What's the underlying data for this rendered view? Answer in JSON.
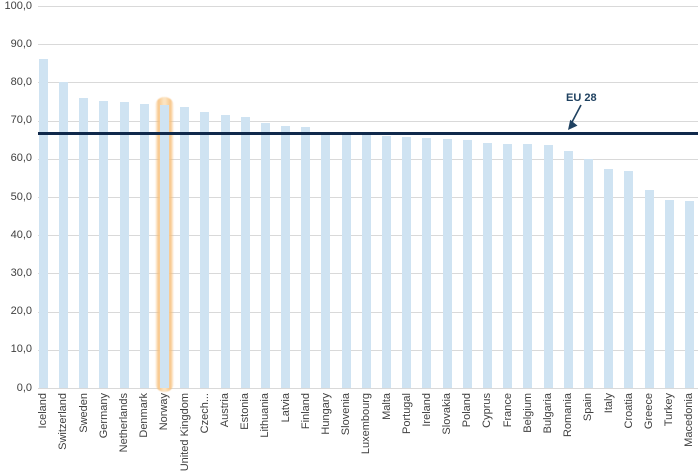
{
  "chart_data": {
    "type": "bar",
    "title": "",
    "xlabel": "",
    "ylabel": "",
    "ylim": [
      0,
      100
    ],
    "ytick_step": 10,
    "grid": true,
    "bar_color": "#cfe3f2",
    "gridline_color": "#d9d9d9",
    "text_color": "#404040",
    "categories": [
      "Iceland",
      "Switzerland",
      "Sweden",
      "Germany",
      "Netherlands",
      "Denmark",
      "Norway",
      "United Kingdom",
      "Czech...",
      "Austria",
      "Estonia",
      "Lithuania",
      "Latvia",
      "Finland",
      "Hungary",
      "Slovenia",
      "Luxembourg",
      "Malta",
      "Portugal",
      "Ireland",
      "Slovakia",
      "Poland",
      "Cyprus",
      "France",
      "Belgium",
      "Bulgaria",
      "Romania",
      "Spain",
      "Italy",
      "Croatia",
      "Greece",
      "Turkey",
      "Macedonia"
    ],
    "values": [
      86.0,
      80.1,
      76.0,
      75.2,
      74.9,
      74.4,
      74.0,
      73.5,
      72.2,
      71.5,
      70.9,
      69.3,
      68.6,
      68.2,
      66.5,
      66.4,
      66.2,
      66.0,
      65.8,
      65.4,
      65.1,
      64.9,
      64.2,
      64.0,
      63.8,
      63.6,
      62.0,
      60.0,
      57.3,
      56.9,
      51.8,
      49.2,
      48.9
    ],
    "y_tick_labels": [
      "100,0",
      "90,0",
      "80,0",
      "70,0",
      "60,0",
      "50,0",
      "40,0",
      "30,0",
      "20,0",
      "10,0",
      "0,0"
    ],
    "reference_line": {
      "label": "EU 28",
      "value": 66.6,
      "color": "#10294b"
    },
    "highlight": {
      "category": "Norway",
      "color": "#f6bc74"
    },
    "legend_position": "none"
  }
}
